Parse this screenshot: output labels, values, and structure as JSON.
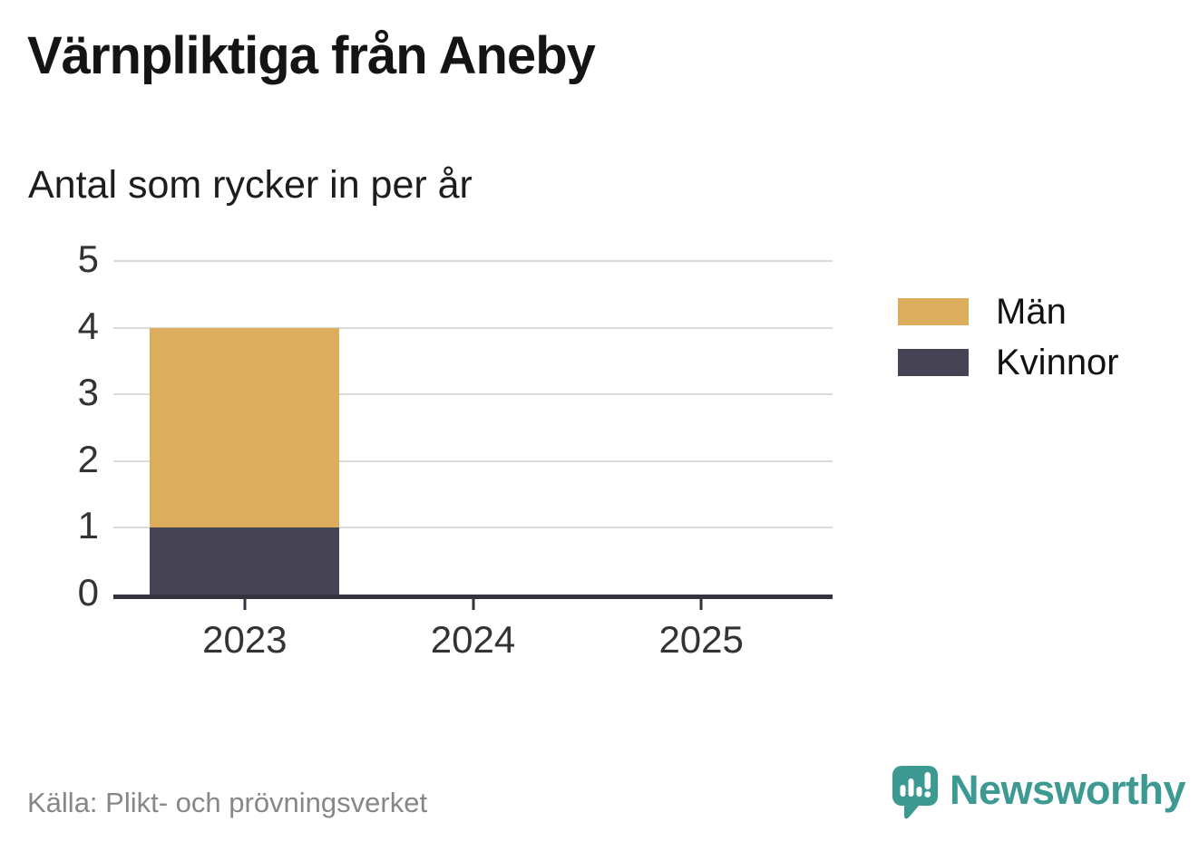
{
  "header": {
    "title": "Värnpliktiga från Aneby",
    "subtitle": "Antal som rycker in per år"
  },
  "chart_data": {
    "type": "bar",
    "stacked": true,
    "title": "Värnpliktiga från Aneby",
    "subtitle": "Antal som rycker in per år",
    "categories": [
      "2023",
      "2024",
      "2025"
    ],
    "series": [
      {
        "name": "Män",
        "color": "#dbad5c",
        "values": [
          3,
          0,
          0
        ]
      },
      {
        "name": "Kvinnor",
        "color": "#454354",
        "values": [
          1,
          0,
          0
        ]
      }
    ],
    "stack_totals": [
      4,
      0,
      0
    ],
    "xlabel": "",
    "ylabel": "",
    "ylim": [
      0,
      5
    ],
    "yticks": [
      0,
      1,
      2,
      3,
      4,
      5
    ],
    "grid": "horizontal",
    "legend_position": "right"
  },
  "footer": {
    "source": "Källa: Plikt- och prövningsverket",
    "brand": "Newsworthy",
    "logo_icon": "speech-bubble-bar-chart-icon"
  },
  "colors": {
    "men": "#dbad5c",
    "women": "#454354",
    "axis": "#35343e",
    "gridline": "#dbdbdb",
    "axis_label": "#333333",
    "title_text": "#141414",
    "source_text": "#878787",
    "brand_teal": "#3d9a93",
    "background": "#ffffff"
  }
}
